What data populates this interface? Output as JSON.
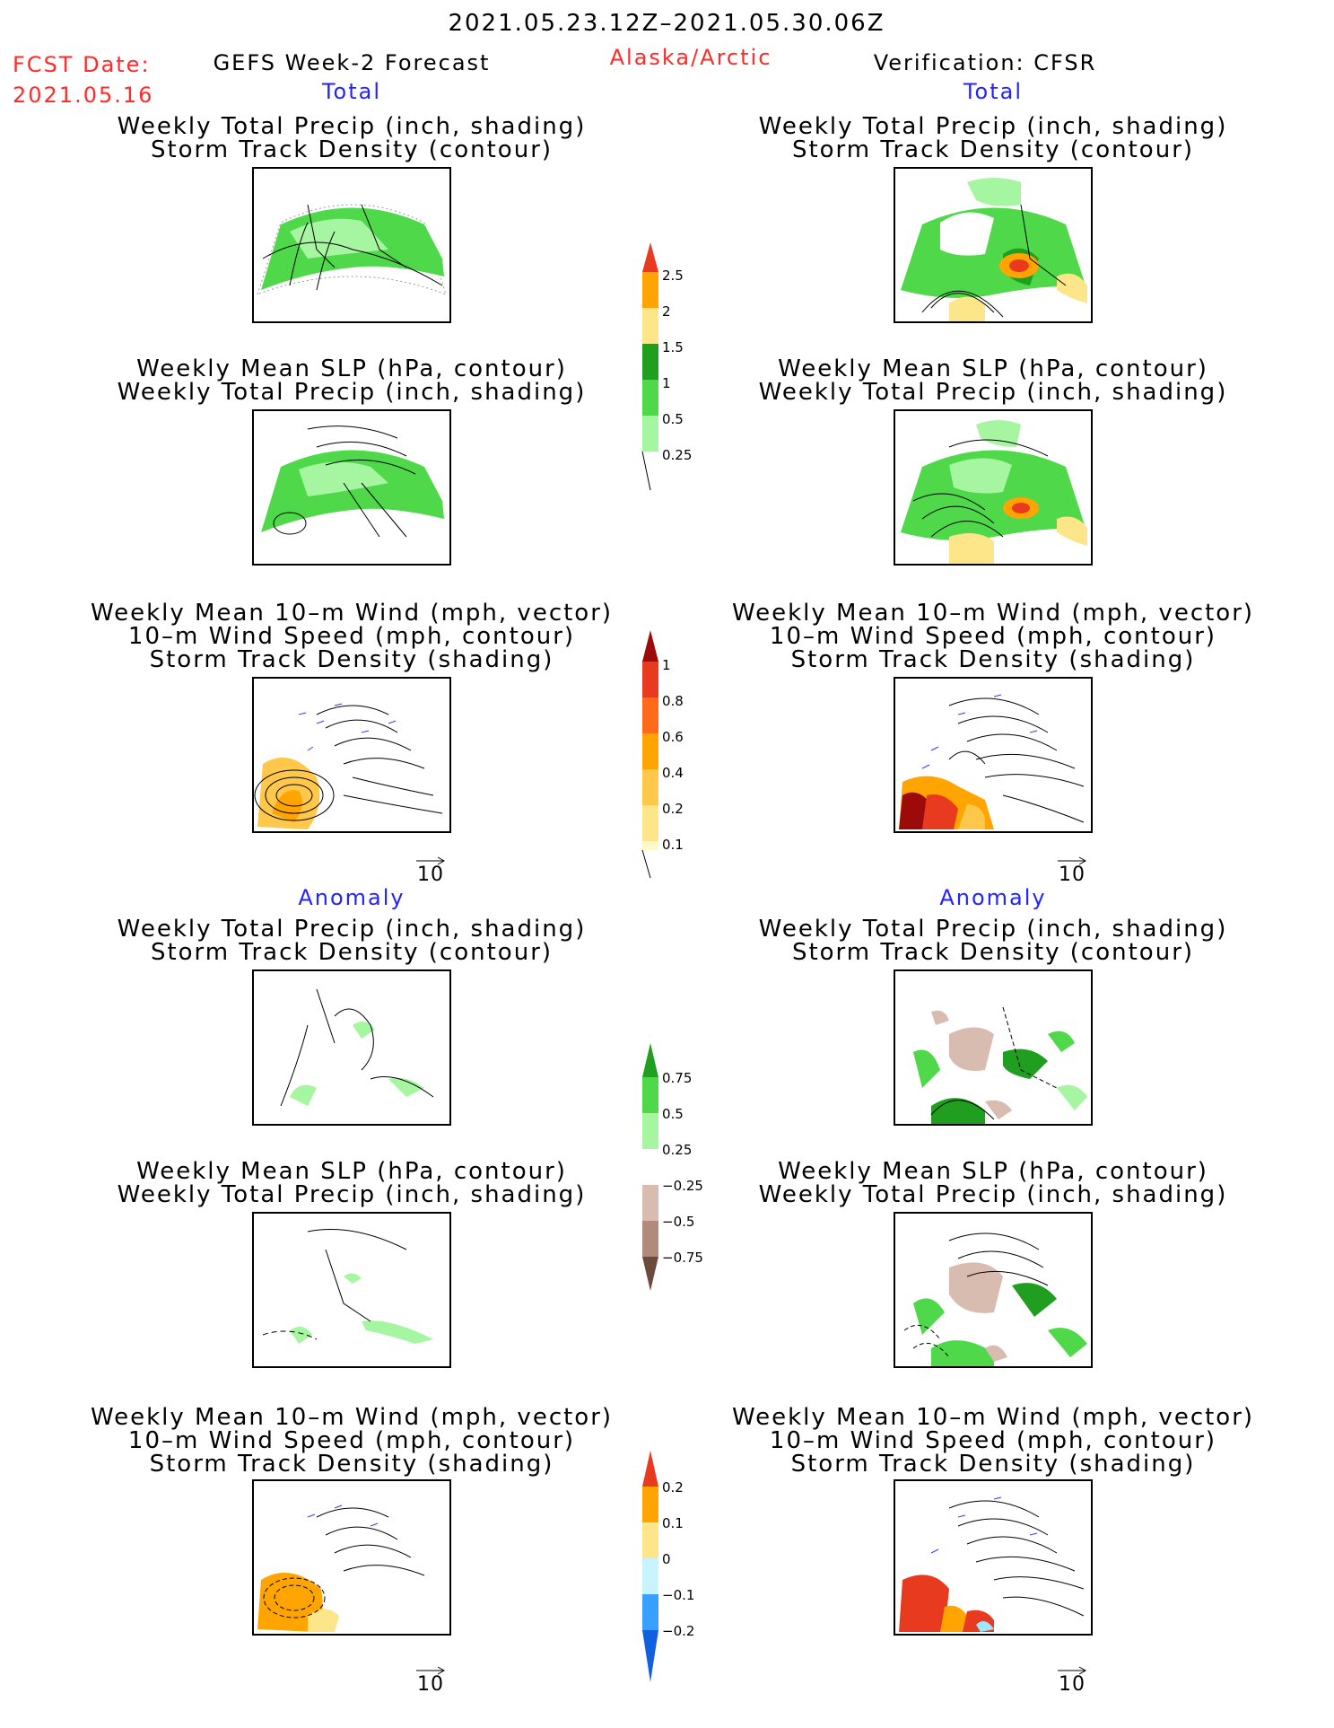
{
  "header": {
    "date_range": "2021.05.23.12Z–2021.05.30.06Z",
    "fcst_date_label": "FCST Date:",
    "fcst_date_value": "2021.05.16",
    "forecast_title": "GEFS Week-2 Forecast",
    "region": "Alaska/Arctic",
    "verification": "Verification: CFSR"
  },
  "sections": {
    "total_left": "Total",
    "total_right": "Total",
    "anomaly_left": "Anomaly",
    "anomaly_right": "Anomaly"
  },
  "panels": [
    {
      "line1": "Weekly Total Precip (inch, shading)",
      "line2": "Storm Track Density (contour)",
      "line3": ""
    },
    {
      "line1": "Weekly Mean SLP (hPa, contour)",
      "line2": "Weekly Total Precip (inch, shading)",
      "line3": ""
    },
    {
      "line1": "Weekly Mean 10–m Wind (mph, vector)",
      "line2": "10–m Wind Speed (mph, contour)",
      "line3": "Storm Track Density (shading)"
    }
  ],
  "vector_ref": "10",
  "colorbars": {
    "precip_total": [
      "2.5",
      "2",
      "1.5",
      "1",
      "0.5",
      "0.25"
    ],
    "storm_total": [
      "1",
      "0.8",
      "0.6",
      "0.4",
      "0.2",
      "0.1"
    ],
    "precip_anom": [
      "0.75",
      "0.5",
      "0.25",
      "−0.25",
      "−0.5",
      "−0.75"
    ],
    "storm_anom": [
      "0.2",
      "0.1",
      "0",
      "−0.1",
      "−0.2"
    ]
  },
  "colors": {
    "precip_light": "#a6f5a0",
    "precip_mid": "#4ed84a",
    "precip_dark": "#1f9e1f",
    "yellow": "#fde58a",
    "orange": "#ffa400",
    "red": "#e83a1e",
    "dark_red": "#9c0a0a",
    "brown_light": "#d9bcb0",
    "brown_mid": "#b08a7a",
    "brown_dark": "#6e4a3c"
  }
}
